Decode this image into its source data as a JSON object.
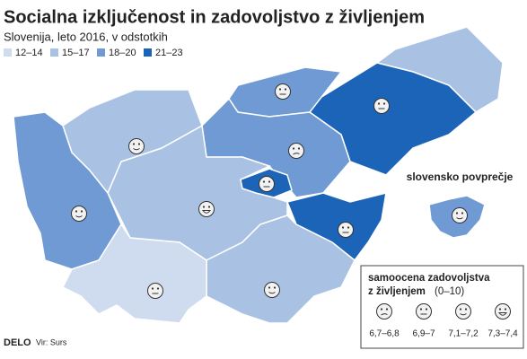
{
  "header": {
    "title": "Socialna izključenost in zadovoljstvo z življenjem",
    "subtitle": "Slovenija, leto 2016, v odstotkih"
  },
  "legend": [
    {
      "label": "12–14",
      "color": "#cfdcef"
    },
    {
      "label": "15–17",
      "color": "#a9c2e4"
    },
    {
      "label": "18–20",
      "color": "#6f9ad3"
    },
    {
      "label": "21–23",
      "color": "#1c64b8"
    }
  ],
  "average_label": "slovensko povprečje",
  "satisfaction": {
    "title_lines": [
      "samoocena zadovoljstva",
      "z življenjem"
    ],
    "scale": "(0–10)",
    "items": [
      "6,7–6,8",
      "6,9–7",
      "7,1–7,2",
      "7,3–7,4"
    ]
  },
  "footer": {
    "brand": "DELO",
    "source": "Vir: Surs"
  }
}
